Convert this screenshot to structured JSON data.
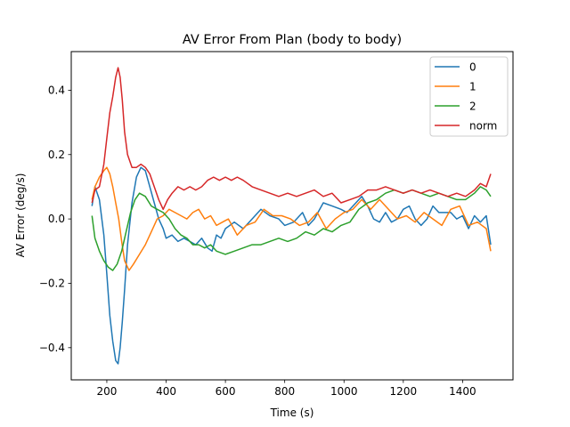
{
  "chart_data": {
    "type": "line",
    "title": "AV Error From Plan (body to body)",
    "xlabel": "Time (s)",
    "ylabel": "AV Error (deg/s)",
    "xlim": [
      80,
      1570
    ],
    "ylim": [
      -0.5,
      0.52
    ],
    "xticks": [
      200,
      400,
      600,
      800,
      1000,
      1200,
      1400
    ],
    "xtick_labels": [
      "200",
      "400",
      "600",
      "800",
      "1000",
      "1200",
      "1400"
    ],
    "yticks": [
      -0.4,
      -0.2,
      0.0,
      0.2,
      0.4
    ],
    "ytick_labels": [
      "−0.4",
      "−0.2",
      "0.0",
      "0.2",
      "0.4"
    ],
    "grid": false,
    "legend_position": "top-right",
    "series": [
      {
        "name": "0",
        "color": "#1f77b4",
        "x": [
          150,
          160,
          175,
          190,
          200,
          210,
          220,
          230,
          238,
          245,
          252,
          260,
          270,
          285,
          300,
          315,
          330,
          345,
          360,
          375,
          390,
          400,
          420,
          440,
          460,
          480,
          500,
          520,
          540,
          555,
          570,
          585,
          600,
          630,
          660,
          690,
          720,
          750,
          780,
          800,
          830,
          860,
          880,
          900,
          930,
          960,
          990,
          1010,
          1040,
          1060,
          1080,
          1100,
          1120,
          1140,
          1160,
          1180,
          1200,
          1220,
          1240,
          1260,
          1280,
          1300,
          1320,
          1340,
          1360,
          1380,
          1400,
          1420,
          1440,
          1460,
          1480,
          1495
        ],
        "y": [
          0.04,
          0.1,
          0.06,
          -0.05,
          -0.17,
          -0.3,
          -0.38,
          -0.44,
          -0.45,
          -0.4,
          -0.32,
          -0.22,
          -0.08,
          0.05,
          0.13,
          0.16,
          0.15,
          0.1,
          0.05,
          0.0,
          -0.03,
          -0.06,
          -0.05,
          -0.07,
          -0.06,
          -0.07,
          -0.08,
          -0.06,
          -0.09,
          -0.1,
          -0.05,
          -0.06,
          -0.03,
          -0.01,
          -0.03,
          0.0,
          0.03,
          0.01,
          0.0,
          -0.02,
          -0.01,
          0.02,
          -0.02,
          0.0,
          0.05,
          0.04,
          0.03,
          0.02,
          0.05,
          0.07,
          0.04,
          0.0,
          -0.01,
          0.02,
          -0.01,
          0.0,
          0.03,
          0.04,
          0.0,
          -0.02,
          0.0,
          0.04,
          0.02,
          0.02,
          0.02,
          0.0,
          0.01,
          -0.03,
          0.01,
          -0.01,
          0.01,
          -0.08
        ]
      },
      {
        "name": "1",
        "color": "#ff7f0e",
        "x": [
          150,
          160,
          175,
          190,
          200,
          210,
          220,
          230,
          240,
          250,
          260,
          275,
          290,
          310,
          330,
          350,
          370,
          390,
          410,
          430,
          450,
          470,
          490,
          510,
          530,
          550,
          570,
          590,
          610,
          640,
          670,
          700,
          730,
          760,
          790,
          820,
          850,
          880,
          910,
          940,
          970,
          1000,
          1030,
          1060,
          1090,
          1120,
          1150,
          1180,
          1210,
          1240,
          1270,
          1300,
          1330,
          1360,
          1390,
          1420,
          1450,
          1480,
          1495
        ],
        "y": [
          0.06,
          0.1,
          0.13,
          0.15,
          0.16,
          0.14,
          0.1,
          0.05,
          0.0,
          -0.07,
          -0.13,
          -0.16,
          -0.14,
          -0.11,
          -0.08,
          -0.04,
          0.0,
          0.01,
          0.03,
          0.02,
          0.01,
          0.0,
          0.02,
          0.03,
          0.0,
          0.01,
          -0.02,
          -0.01,
          0.0,
          -0.05,
          -0.02,
          -0.01,
          0.03,
          0.01,
          0.01,
          0.0,
          -0.02,
          -0.01,
          0.02,
          -0.03,
          0.0,
          0.02,
          0.03,
          0.06,
          0.03,
          0.06,
          0.03,
          0.0,
          0.01,
          -0.01,
          0.02,
          0.0,
          -0.02,
          0.03,
          0.04,
          -0.02,
          -0.01,
          -0.03,
          -0.1
        ]
      },
      {
        "name": "2",
        "color": "#2ca02c",
        "x": [
          150,
          160,
          175,
          190,
          205,
          220,
          235,
          250,
          265,
          280,
          295,
          310,
          330,
          350,
          370,
          390,
          410,
          430,
          450,
          470,
          490,
          510,
          530,
          550,
          570,
          600,
          630,
          660,
          690,
          720,
          750,
          780,
          810,
          840,
          870,
          900,
          930,
          960,
          990,
          1020,
          1050,
          1080,
          1110,
          1140,
          1170,
          1200,
          1230,
          1260,
          1290,
          1320,
          1350,
          1380,
          1410,
          1440,
          1460,
          1480,
          1495
        ],
        "y": [
          0.01,
          -0.06,
          -0.1,
          -0.13,
          -0.15,
          -0.16,
          -0.14,
          -0.1,
          -0.04,
          0.02,
          0.06,
          0.08,
          0.07,
          0.04,
          0.03,
          0.02,
          0.0,
          -0.03,
          -0.05,
          -0.06,
          -0.08,
          -0.08,
          -0.09,
          -0.08,
          -0.1,
          -0.11,
          -0.1,
          -0.09,
          -0.08,
          -0.08,
          -0.07,
          -0.06,
          -0.07,
          -0.06,
          -0.04,
          -0.05,
          -0.03,
          -0.04,
          -0.02,
          -0.01,
          0.03,
          0.05,
          0.06,
          0.08,
          0.09,
          0.08,
          0.09,
          0.08,
          0.07,
          0.08,
          0.07,
          0.06,
          0.06,
          0.08,
          0.1,
          0.09,
          0.07
        ]
      },
      {
        "name": "norm",
        "color": "#d62728",
        "x": [
          150,
          160,
          175,
          190,
          200,
          210,
          220,
          230,
          238,
          245,
          252,
          260,
          270,
          285,
          300,
          315,
          330,
          345,
          360,
          375,
          390,
          405,
          420,
          440,
          460,
          480,
          500,
          520,
          540,
          560,
          580,
          600,
          620,
          640,
          660,
          690,
          720,
          750,
          780,
          810,
          840,
          870,
          900,
          930,
          960,
          990,
          1020,
          1050,
          1080,
          1110,
          1140,
          1170,
          1200,
          1230,
          1260,
          1290,
          1320,
          1350,
          1380,
          1410,
          1440,
          1460,
          1480,
          1495
        ],
        "y": [
          0.05,
          0.09,
          0.1,
          0.17,
          0.25,
          0.33,
          0.38,
          0.44,
          0.47,
          0.44,
          0.37,
          0.27,
          0.2,
          0.16,
          0.16,
          0.17,
          0.16,
          0.14,
          0.1,
          0.06,
          0.03,
          0.06,
          0.08,
          0.1,
          0.09,
          0.1,
          0.09,
          0.1,
          0.12,
          0.13,
          0.12,
          0.13,
          0.12,
          0.13,
          0.12,
          0.1,
          0.09,
          0.08,
          0.07,
          0.08,
          0.07,
          0.08,
          0.09,
          0.07,
          0.08,
          0.05,
          0.06,
          0.07,
          0.09,
          0.09,
          0.1,
          0.09,
          0.08,
          0.09,
          0.08,
          0.09,
          0.08,
          0.07,
          0.08,
          0.07,
          0.09,
          0.11,
          0.1,
          0.14
        ]
      }
    ]
  }
}
